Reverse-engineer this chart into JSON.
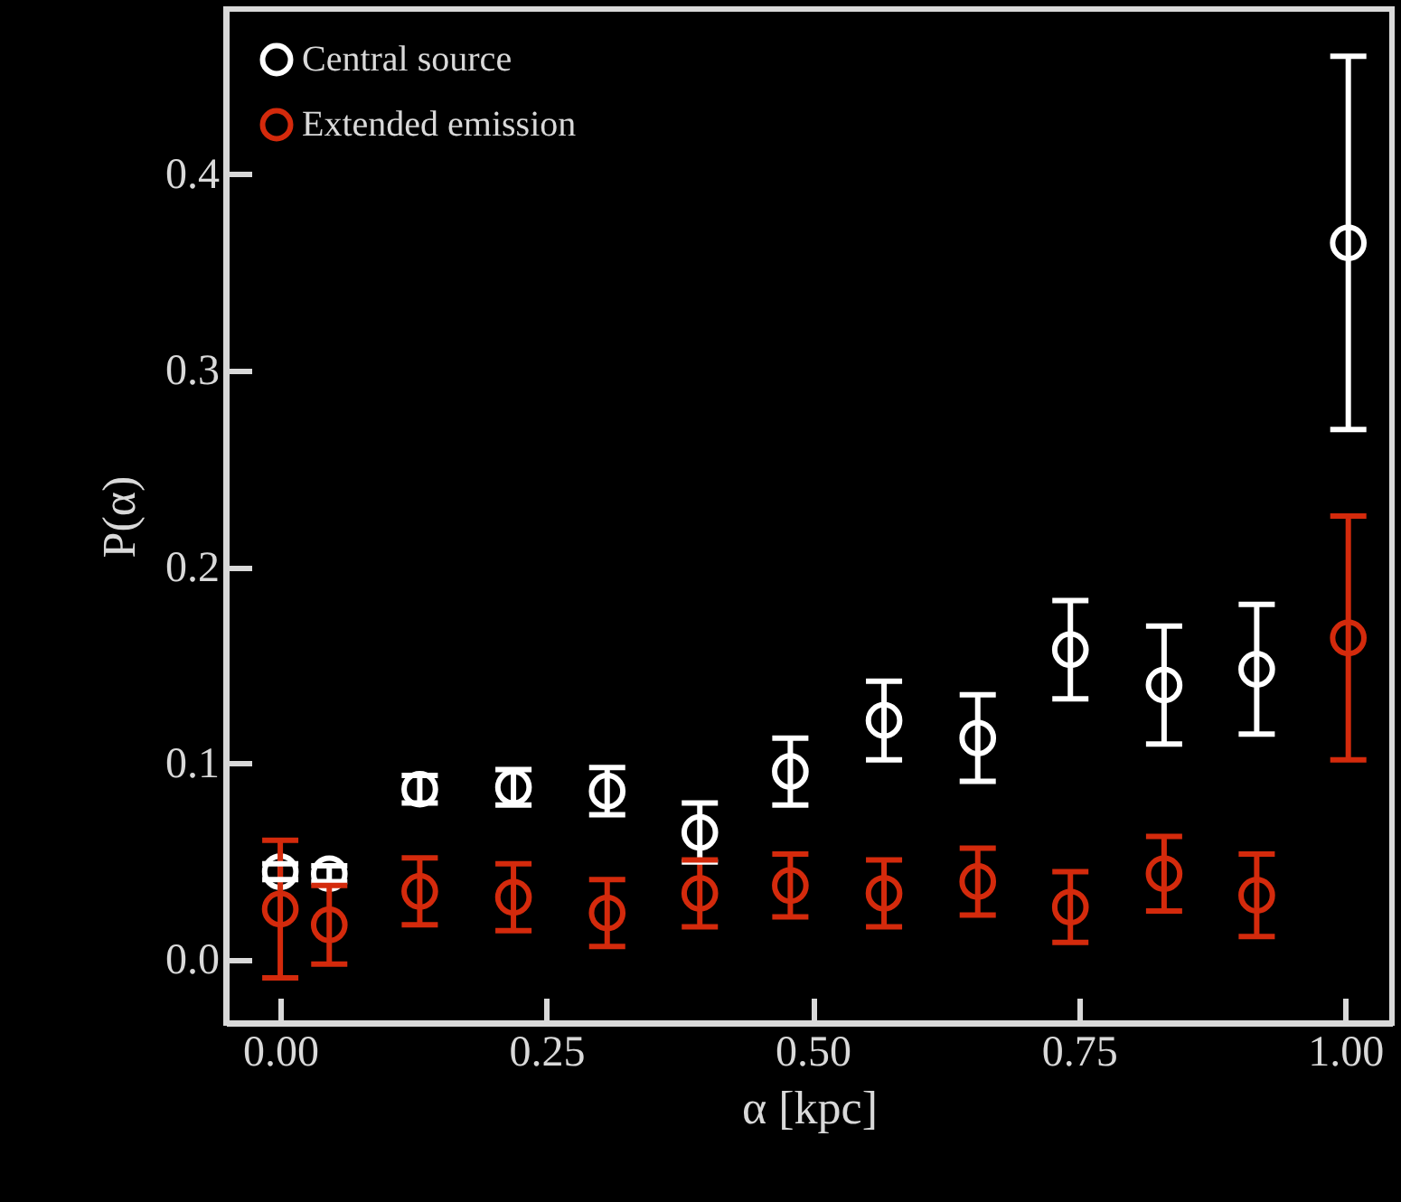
{
  "chart_data": {
    "type": "scatter",
    "xlabel": "α [kpc]",
    "ylabel": "P(α)",
    "x": [
      0.0,
      0.046,
      0.131,
      0.219,
      0.307,
      0.394,
      0.479,
      0.567,
      0.655,
      0.742,
      0.83,
      0.917,
      1.003
    ],
    "series": [
      {
        "name": "Central source",
        "color": "#ffffff",
        "values": [
          0.045,
          0.044,
          0.087,
          0.088,
          0.086,
          0.065,
          0.096,
          0.122,
          0.113,
          0.158,
          0.14,
          0.148,
          0.365
        ],
        "errors": [
          0.004,
          0.004,
          0.007,
          0.009,
          0.012,
          0.015,
          0.017,
          0.02,
          0.022,
          0.025,
          0.03,
          0.033,
          0.095
        ]
      },
      {
        "name": "Extended emission",
        "color": "#d42a0c",
        "values": [
          0.026,
          0.018,
          0.035,
          0.032,
          0.024,
          0.034,
          0.038,
          0.034,
          0.04,
          0.027,
          0.044,
          0.033,
          0.164
        ],
        "errors": [
          0.035,
          0.02,
          0.017,
          0.017,
          0.017,
          0.017,
          0.016,
          0.017,
          0.017,
          0.018,
          0.019,
          0.021,
          0.062
        ]
      }
    ],
    "xlim": [
      -0.051,
      1.044
    ],
    "ylim": [
      -0.032,
      0.484
    ],
    "xticks": [
      {
        "value": 0,
        "label": "0.00"
      },
      {
        "value": 0.25,
        "label": "0.25"
      },
      {
        "value": 0.5,
        "label": "0.50"
      },
      {
        "value": 0.75,
        "label": "0.75"
      },
      {
        "value": 1,
        "label": "1.00"
      }
    ],
    "yticks": [
      {
        "value": 0,
        "label": "0.0"
      },
      {
        "value": 0.1,
        "label": "0.1"
      },
      {
        "value": 0.2,
        "label": "0.2"
      },
      {
        "value": 0.3,
        "label": "0.3"
      },
      {
        "value": 0.4,
        "label": "0.4"
      }
    ],
    "legend": "top left",
    "marker": "circle",
    "grid": false
  }
}
